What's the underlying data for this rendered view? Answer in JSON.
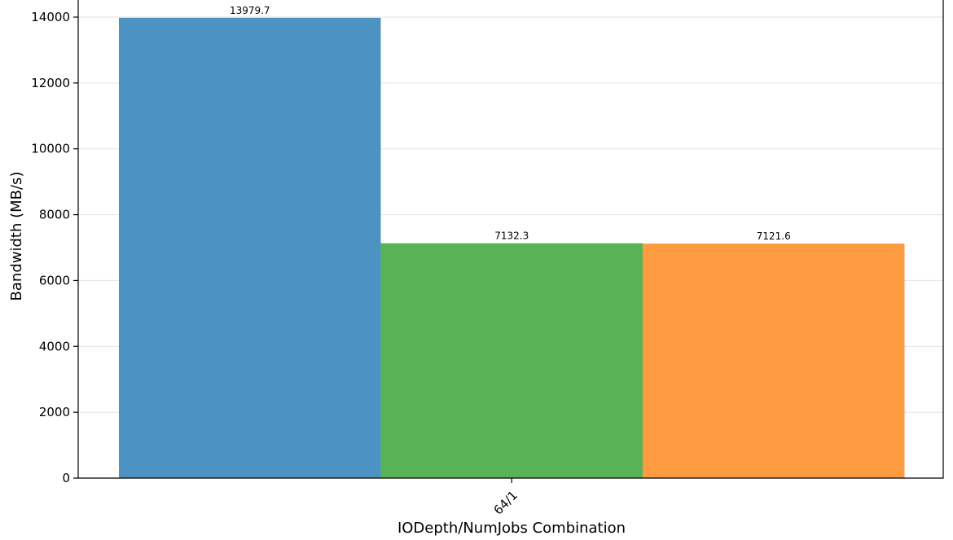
{
  "chart_data": {
    "type": "bar",
    "title": "",
    "xlabel": "IODepth/NumJobs Combination",
    "ylabel": "Bandwidth (MB/s)",
    "categories": [
      "64/1"
    ],
    "ylim": [
      0,
      14700
    ],
    "yticks": [
      0,
      2000,
      4000,
      6000,
      8000,
      10000,
      12000,
      14000
    ],
    "grid": true,
    "legend": "none",
    "series": [
      {
        "values": [
          13979.7
        ],
        "label": "13979.7",
        "color": "#4c92c3"
      },
      {
        "values": [
          7132.3
        ],
        "label": "7132.3",
        "color": "#58b356"
      },
      {
        "values": [
          7121.6
        ],
        "label": "7121.6",
        "color": "#fe9a40"
      }
    ]
  }
}
